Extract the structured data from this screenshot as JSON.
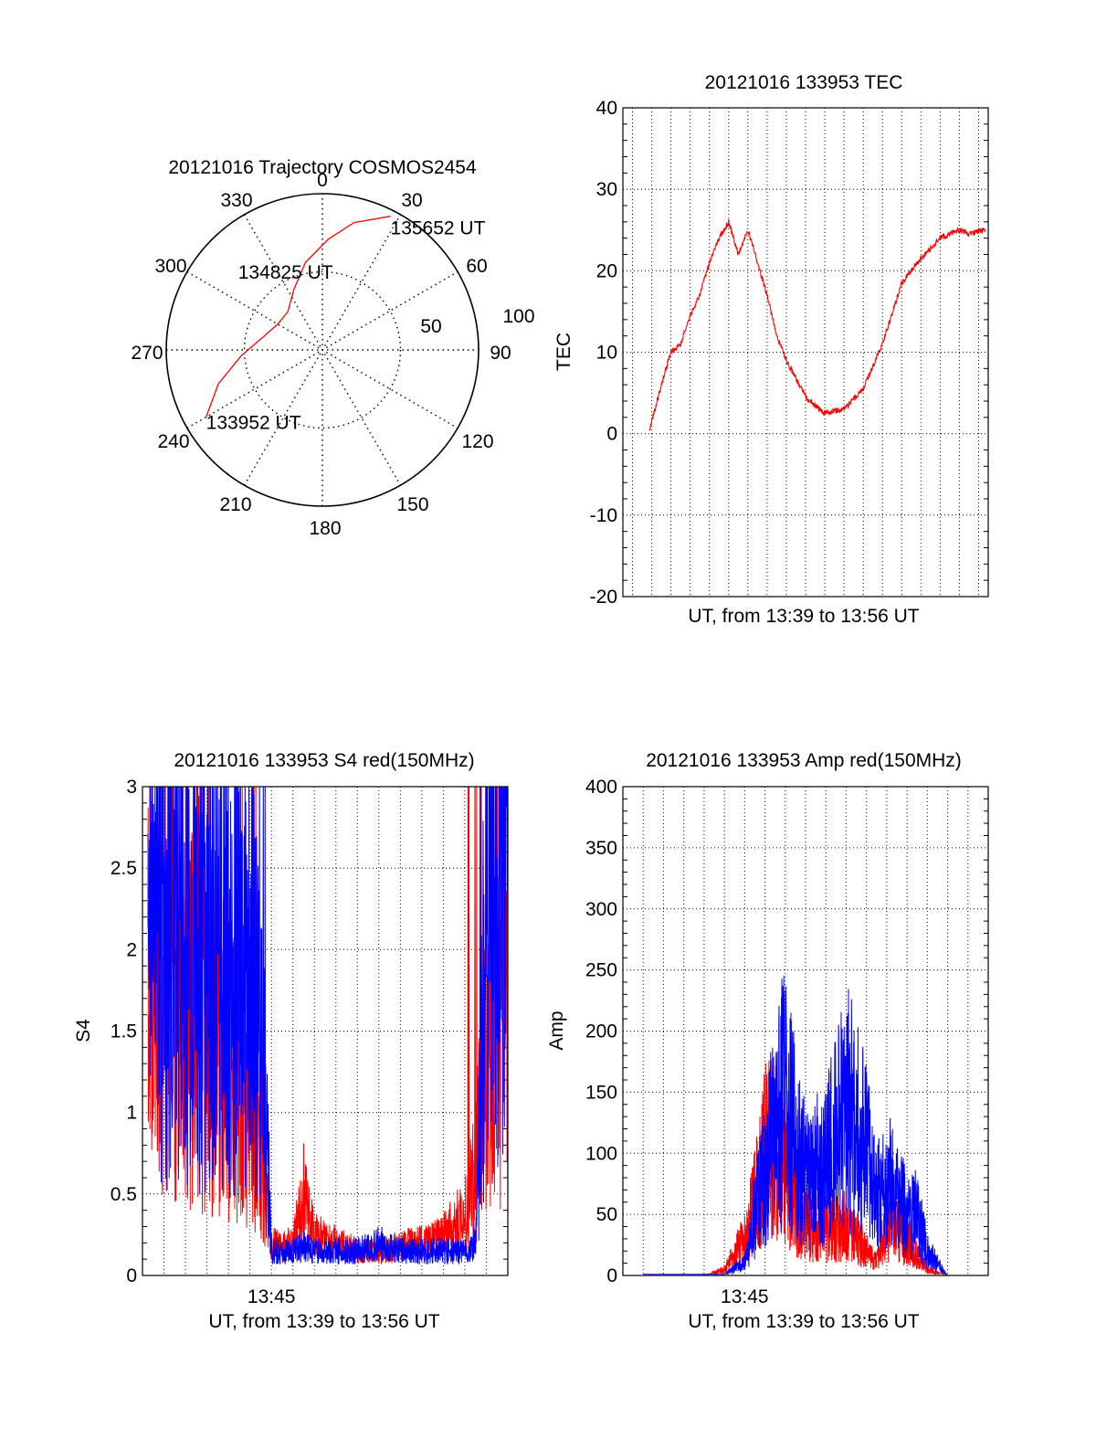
{
  "chart_data": [
    {
      "type": "polar",
      "title": "20121016 Trajectory COSMOS2454",
      "azimuth_labels": [
        "0",
        "30",
        "60",
        "90",
        "120",
        "150",
        "180",
        "210",
        "240",
        "270",
        "300",
        "330"
      ],
      "radius_labels": [
        "50",
        "100"
      ],
      "series": [
        {
          "color": "#ff0000",
          "points": [
            {
              "az": 240,
              "r": 86
            },
            {
              "az": 252,
              "r": 70
            },
            {
              "az": 266,
              "r": 52
            },
            {
              "az": 282,
              "r": 39
            },
            {
              "az": 300,
              "r": 33
            },
            {
              "az": 318,
              "r": 33
            },
            {
              "az": 335,
              "r": 43
            },
            {
              "az": 349,
              "r": 57
            },
            {
              "az": 3,
              "r": 71
            },
            {
              "az": 14,
              "r": 84
            },
            {
              "az": 27,
              "r": 96
            }
          ]
        }
      ],
      "annotations": [
        {
          "text": "133952 UT",
          "az": 240,
          "r": 86
        },
        {
          "text": "134825 UT",
          "az": 320,
          "r": 33
        },
        {
          "text": "135652 UT",
          "az": 27,
          "r": 96
        }
      ]
    },
    {
      "type": "line",
      "title": "20121016 133953 TEC",
      "xlabel": "UT, from 13:39 to 13:56 UT",
      "ylabel": "TEC",
      "xlim": [
        "13:38:30",
        "13:57:30"
      ],
      "ylim": [
        -20,
        40
      ],
      "yticks": [
        "-20",
        "-10",
        "0",
        "10",
        "20",
        "30",
        "40"
      ],
      "grid": true,
      "series": [
        {
          "color": "#ff0000",
          "x": [
            "13:39:53",
            "13:40:30",
            "13:41:00",
            "13:41:30",
            "13:42:00",
            "13:42:30",
            "13:43:00",
            "13:43:30",
            "13:44:00",
            "13:44:30",
            "13:45:00",
            "13:45:30",
            "13:46:00",
            "13:46:30",
            "13:47:00",
            "13:48:00",
            "13:49:00",
            "13:50:00",
            "13:51:00",
            "13:52:00",
            "13:53:00",
            "13:54:00",
            "13:55:00",
            "13:56:00",
            "13:56:30",
            "13:57:20"
          ],
          "y": [
            0.5,
            6,
            10,
            11,
            14.5,
            17,
            21,
            24,
            26,
            22,
            25,
            21,
            17,
            12,
            9,
            4.5,
            2.5,
            3,
            5.5,
            11,
            18.5,
            21.5,
            24,
            25,
            24.5,
            25
          ]
        }
      ]
    },
    {
      "type": "line",
      "title": "20121016 133953 S4 red(150MHz)",
      "xlabel": "UT, from 13:39 to 13:56 UT",
      "ylabel": "S4",
      "xlim": [
        "13:39:00",
        "13:56:00"
      ],
      "ylim": [
        0,
        3
      ],
      "xticks": [
        "13:45"
      ],
      "yticks": [
        "0",
        "0.5",
        "1",
        "1.5",
        "2",
        "2.5",
        "3"
      ],
      "grid": true,
      "series": [
        {
          "color": "#ff0000",
          "x": [
            "13:39:15",
            "13:40:00",
            "13:41:00",
            "13:42:00",
            "13:43:00",
            "13:44:00",
            "13:44:30",
            "13:45:00",
            "13:45:30",
            "13:46:00",
            "13:46:30",
            "13:47:00",
            "13:48:00",
            "13:49:00",
            "13:50:00",
            "13:51:00",
            "13:52:00",
            "13:53:00",
            "13:54:00",
            "13:54:30",
            "13:55:00",
            "13:56:00"
          ],
          "y": [
            1.8,
            1.7,
            1.6,
            1.45,
            1.3,
            1.1,
            0.9,
            0.2,
            0.18,
            0.2,
            0.5,
            0.25,
            0.2,
            0.15,
            0.15,
            0.18,
            0.2,
            0.25,
            0.4,
            0.6,
            1.4,
            1.7
          ]
        },
        {
          "color": "#0000ff",
          "x": [
            "13:39:15",
            "13:40:00",
            "13:41:00",
            "13:42:00",
            "13:43:00",
            "13:44:00",
            "13:44:30",
            "13:45:00",
            "13:45:30",
            "13:46:00",
            "13:46:30",
            "13:47:00",
            "13:48:00",
            "13:49:00",
            "13:50:00",
            "13:51:00",
            "13:52:00",
            "13:53:00",
            "13:54:00",
            "13:54:30",
            "13:55:00",
            "13:56:00"
          ],
          "y": [
            2.2,
            2.1,
            2.0,
            1.9,
            1.9,
            1.8,
            1.7,
            0.15,
            0.15,
            0.15,
            0.18,
            0.15,
            0.15,
            0.15,
            0.2,
            0.15,
            0.15,
            0.15,
            0.15,
            0.2,
            2.2,
            2.4
          ]
        }
      ]
    },
    {
      "type": "line",
      "title": "20121016 133953 Amp red(150MHz)",
      "xlabel": "UT, from 13:39 to 13:56 UT",
      "ylabel": "Amp",
      "xlim": [
        "13:39:00",
        "13:57:00"
      ],
      "ylim": [
        0,
        400
      ],
      "xticks": [
        "13:45"
      ],
      "yticks": [
        "0",
        "50",
        "100",
        "150",
        "200",
        "250",
        "300",
        "350",
        "400"
      ],
      "grid": true,
      "series": [
        {
          "color": "#ff0000",
          "x": [
            "13:40:00",
            "13:43:00",
            "13:44:00",
            "13:45:00",
            "13:45:30",
            "13:46:00",
            "13:46:30",
            "13:47:00",
            "13:47:30",
            "13:48:00",
            "13:49:00",
            "13:50:00",
            "13:51:00",
            "13:51:30",
            "13:52:00",
            "13:53:00",
            "13:54:00",
            "13:55:00",
            "13:57:00"
          ],
          "y": [
            0,
            0,
            5,
            30,
            60,
            100,
            110,
            80,
            60,
            40,
            40,
            40,
            20,
            10,
            40,
            30,
            5,
            0,
            0
          ]
        },
        {
          "color": "#0000ff",
          "x": [
            "13:40:00",
            "13:44:00",
            "13:45:00",
            "13:45:30",
            "13:46:00",
            "13:46:30",
            "13:47:00",
            "13:47:30",
            "13:48:00",
            "13:49:00",
            "13:50:00",
            "13:51:00",
            "13:51:30",
            "13:52:00",
            "13:53:00",
            "13:53:30",
            "13:54:00",
            "13:55:00",
            "13:57:00"
          ],
          "y": [
            1,
            1,
            10,
            50,
            80,
            130,
            150,
            110,
            80,
            90,
            140,
            100,
            60,
            80,
            50,
            50,
            20,
            0,
            0
          ]
        }
      ]
    }
  ]
}
